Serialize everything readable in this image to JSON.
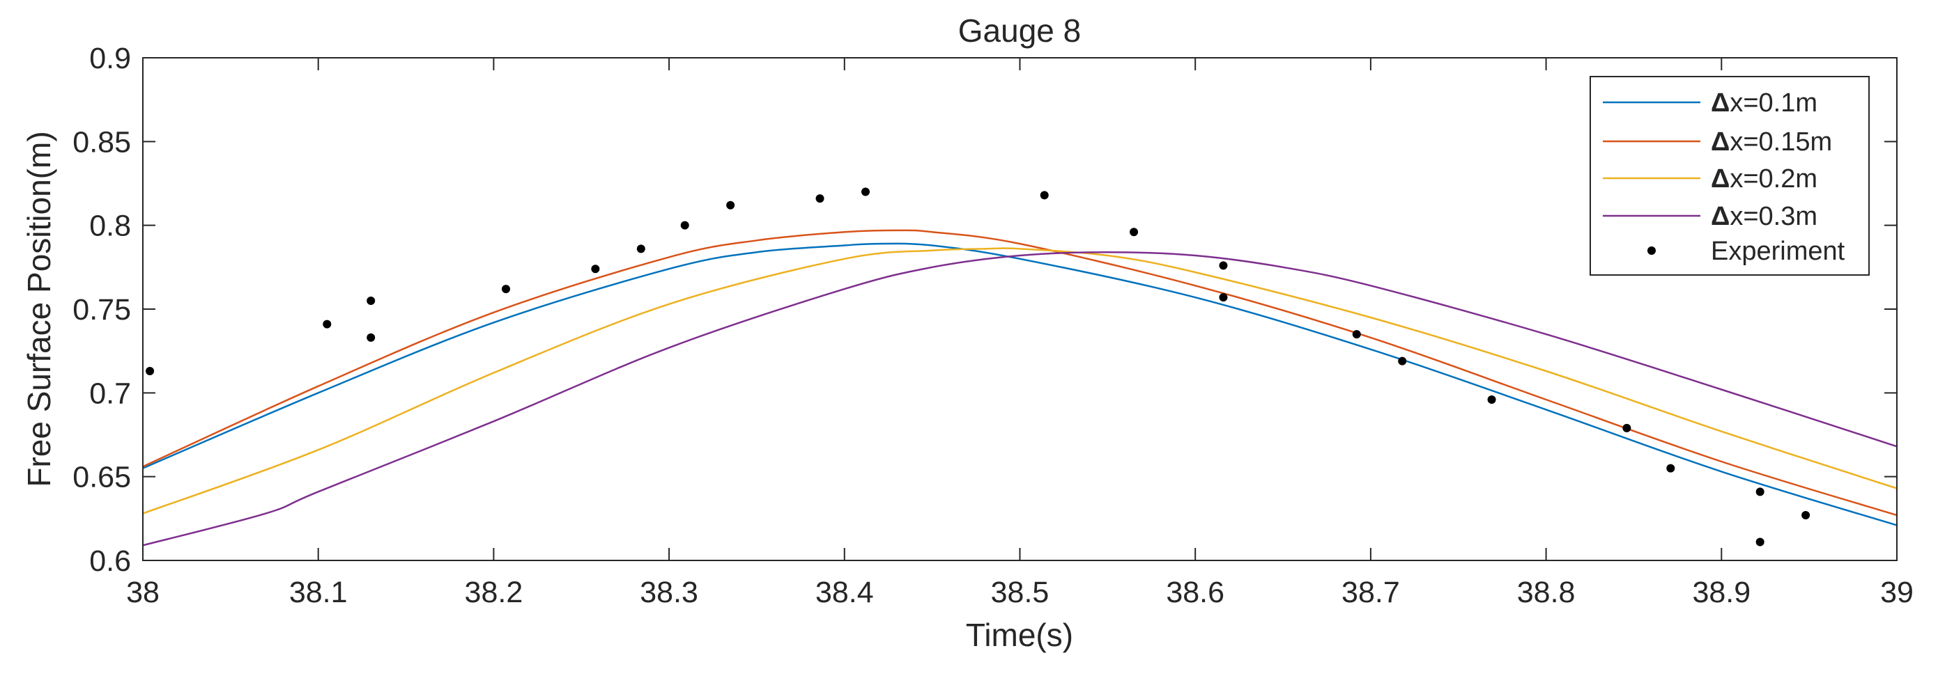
{
  "chart_data": {
    "type": "line",
    "title": "Gauge 8",
    "xlabel": "Time(s)",
    "ylabel": "Free Surface Position(m)",
    "xlim": [
      38,
      39
    ],
    "ylim": [
      0.6,
      0.9
    ],
    "xticks": [
      38,
      38.1,
      38.2,
      38.3,
      38.4,
      38.5,
      38.6,
      38.7,
      38.8,
      38.9,
      39
    ],
    "xtick_labels": [
      "38",
      "38.1",
      "38.2",
      "38.3",
      "38.4",
      "38.5",
      "38.6",
      "38.7",
      "38.8",
      "38.9",
      "39"
    ],
    "yticks": [
      0.6,
      0.65,
      0.7,
      0.75,
      0.8,
      0.85,
      0.9
    ],
    "ytick_labels": [
      "0.6",
      "0.65",
      "0.7",
      "0.75",
      "0.8",
      "0.85",
      "0.9"
    ],
    "grid": false,
    "legend_position": "top-right",
    "series": [
      {
        "name": "Δx=0.1m",
        "legend_symbol": "Δ",
        "legend_rest": "x=0.1m",
        "color": "#0072BD",
        "style": "line",
        "x": [
          38.0,
          38.1,
          38.2,
          38.3,
          38.35,
          38.4,
          38.42,
          38.45,
          38.5,
          38.6,
          38.7,
          38.8,
          38.9,
          39.0
        ],
        "y": [
          0.655,
          0.7,
          0.742,
          0.774,
          0.784,
          0.788,
          0.789,
          0.788,
          0.78,
          0.757,
          0.726,
          0.69,
          0.653,
          0.621
        ]
      },
      {
        "name": "Δx=0.15m",
        "legend_symbol": "Δ",
        "legend_rest": "x=0.15m",
        "color": "#D95319",
        "style": "line",
        "x": [
          38.0,
          38.1,
          38.2,
          38.3,
          38.35,
          38.4,
          38.43,
          38.45,
          38.5,
          38.6,
          38.7,
          38.8,
          38.9,
          39.0
        ],
        "y": [
          0.656,
          0.704,
          0.748,
          0.781,
          0.791,
          0.796,
          0.797,
          0.796,
          0.789,
          0.764,
          0.733,
          0.696,
          0.659,
          0.627
        ]
      },
      {
        "name": "Δx=0.2m",
        "legend_symbol": "Δ",
        "legend_rest": "x=0.2m",
        "color": "#EDB120",
        "style": "line",
        "x": [
          38.0,
          38.1,
          38.2,
          38.3,
          38.4,
          38.45,
          38.48,
          38.5,
          38.55,
          38.6,
          38.7,
          38.8,
          38.9,
          39.0
        ],
        "y": [
          0.628,
          0.666,
          0.712,
          0.753,
          0.78,
          0.785,
          0.786,
          0.786,
          0.782,
          0.772,
          0.745,
          0.713,
          0.677,
          0.643
        ]
      },
      {
        "name": "Δx=0.3m",
        "legend_symbol": "Δ",
        "legend_rest": "x=0.3m",
        "color": "#7E2F8E",
        "style": "line",
        "x": [
          38.0,
          38.07,
          38.1,
          38.2,
          38.3,
          38.4,
          38.45,
          38.5,
          38.55,
          38.6,
          38.65,
          38.7,
          38.8,
          38.9,
          39.0
        ],
        "y": [
          0.609,
          0.628,
          0.641,
          0.683,
          0.727,
          0.762,
          0.775,
          0.782,
          0.784,
          0.782,
          0.775,
          0.764,
          0.735,
          0.702,
          0.668
        ]
      },
      {
        "name": "Experiment",
        "color": "#000000",
        "style": "markers",
        "x": [
          38.004,
          38.105,
          38.13,
          38.13,
          38.207,
          38.258,
          38.284,
          38.309,
          38.335,
          38.386,
          38.412,
          38.514,
          38.565,
          38.616,
          38.616,
          38.692,
          38.718,
          38.769,
          38.846,
          38.871,
          38.922,
          38.922,
          38.948
        ],
        "y": [
          0.713,
          0.741,
          0.755,
          0.733,
          0.762,
          0.774,
          0.786,
          0.8,
          0.812,
          0.816,
          0.82,
          0.818,
          0.796,
          0.776,
          0.757,
          0.735,
          0.719,
          0.696,
          0.679,
          0.655,
          0.641,
          0.611,
          0.627
        ]
      }
    ]
  }
}
